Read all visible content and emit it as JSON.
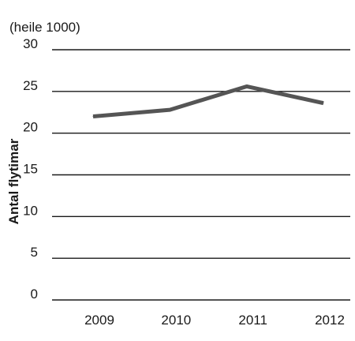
{
  "chart_data": {
    "type": "line",
    "unit_note": "(heile 1000)",
    "ylabel": "Antal flytimar",
    "xlabel": "",
    "categories": [
      "2009",
      "2010",
      "2011",
      "2012"
    ],
    "series": [
      {
        "values": [
          22.0,
          22.8,
          25.6,
          23.6
        ]
      }
    ],
    "ylim": [
      0,
      30
    ],
    "yticks": [
      "0",
      "5",
      "10",
      "15",
      "20",
      "25",
      "30"
    ],
    "grid": true,
    "legend": "none",
    "colors": {
      "line": "#555555",
      "grid": "#1a1a1a"
    }
  }
}
